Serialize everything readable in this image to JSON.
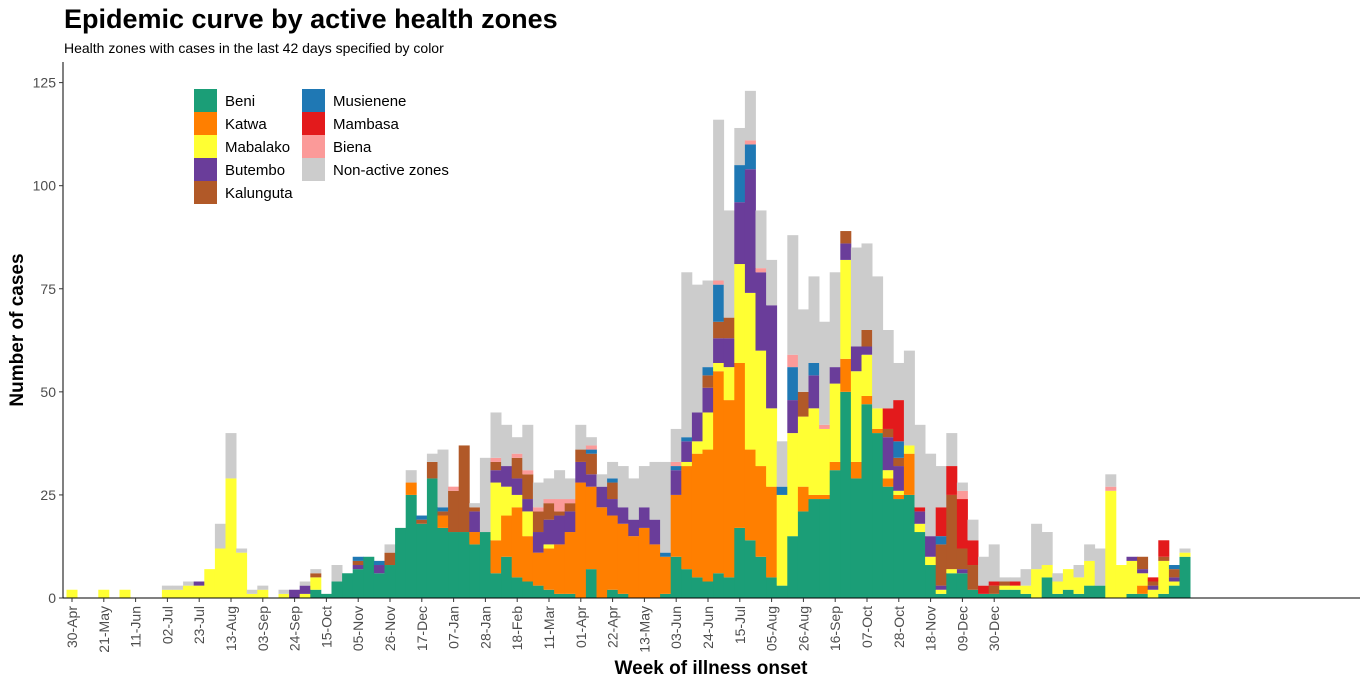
{
  "chart_data": {
    "type": "bar",
    "stacked": true,
    "title": "Epidemic curve by active health zones",
    "subtitle": "Health zones with cases in the last 42 days specified by color",
    "xlabel": "Week of illness onset",
    "ylabel": "Number of cases",
    "ylim": [
      0,
      130
    ],
    "yticks": [
      0,
      25,
      50,
      75,
      100,
      125
    ],
    "x_tick_labels": [
      "30-Apr",
      "21-May",
      "11-Jun",
      "02-Jul",
      "23-Jul",
      "13-Aug",
      "03-Sep",
      "24-Sep",
      "15-Oct",
      "05-Nov",
      "26-Nov",
      "17-Dec",
      "07-Jan",
      "28-Jan",
      "18-Feb",
      "11-Mar",
      "01-Apr",
      "22-Apr",
      "13-May",
      "03-Jun",
      "24-Jun",
      "15-Jul",
      "05-Aug",
      "26-Aug",
      "16-Sep",
      "07-Oct",
      "28-Oct",
      "18-Nov",
      "09-Dec",
      "30-Dec"
    ],
    "legend_position": "top-left",
    "grid": false,
    "series": [
      {
        "name": "Beni",
        "color": "#1b9e77",
        "values": [
          0,
          0,
          0,
          0,
          0,
          0,
          0,
          0,
          0,
          0,
          0,
          0,
          0,
          0,
          0,
          0,
          0,
          0,
          0,
          0,
          0,
          0,
          0,
          2,
          1,
          4,
          6,
          7,
          10,
          6,
          8,
          17,
          25,
          18,
          29,
          17,
          16,
          16,
          13,
          16,
          6,
          10,
          5,
          4,
          3,
          2,
          1,
          1,
          0,
          7,
          0,
          2,
          1,
          0,
          0,
          0,
          1,
          10,
          7,
          5,
          4,
          6,
          5,
          17,
          14,
          10,
          5,
          3,
          15,
          21,
          24,
          24,
          31,
          50,
          29,
          47,
          40,
          27,
          24,
          25,
          16,
          8,
          1,
          6,
          6,
          2,
          1,
          1,
          2,
          2,
          1,
          0,
          5,
          1,
          2,
          1,
          3,
          3,
          0,
          0,
          1,
          1,
          0,
          1,
          3,
          10
        ]
      },
      {
        "name": "Katwa",
        "color": "#ff7f00",
        "values": [
          0,
          0,
          0,
          0,
          0,
          0,
          0,
          0,
          0,
          0,
          0,
          0,
          0,
          0,
          0,
          0,
          0,
          0,
          0,
          0,
          0,
          0,
          0,
          0,
          0,
          0,
          0,
          0,
          0,
          0,
          0,
          0,
          3,
          0,
          0,
          3,
          0,
          0,
          3,
          0,
          8,
          10,
          17,
          11,
          8,
          10,
          12,
          15,
          28,
          20,
          22,
          18,
          17,
          15,
          17,
          13,
          9,
          15,
          25,
          30,
          32,
          49,
          43,
          40,
          22,
          22,
          22,
          0,
          0,
          6,
          1,
          1,
          2,
          8,
          4,
          2,
          1,
          2,
          1,
          10,
          0,
          0,
          0,
          0,
          0,
          0,
          0,
          0,
          0,
          0,
          0,
          0,
          0,
          0,
          0,
          0,
          0,
          0,
          0,
          0,
          0,
          2,
          0,
          0,
          0,
          0
        ]
      },
      {
        "name": "Mabalako",
        "color": "#ffff33",
        "values": [
          2,
          0,
          0,
          2,
          0,
          2,
          0,
          0,
          0,
          2,
          2,
          3,
          3,
          7,
          12,
          29,
          11,
          1,
          2,
          0,
          1,
          0,
          1,
          3,
          0,
          0,
          0,
          0,
          0,
          0,
          0,
          0,
          0,
          0,
          0,
          0,
          0,
          0,
          0,
          0,
          14,
          7,
          3,
          6,
          0,
          1,
          0,
          0,
          0,
          0,
          0,
          0,
          0,
          0,
          0,
          0,
          0,
          0,
          1,
          3,
          9,
          2,
          8,
          24,
          38,
          28,
          19,
          22,
          25,
          17,
          21,
          16,
          19,
          24,
          22,
          10,
          5,
          2,
          1,
          2,
          2,
          2,
          1,
          1,
          0,
          0,
          0,
          0,
          1,
          1,
          2,
          7,
          3,
          3,
          5,
          4,
          6,
          0,
          26,
          8,
          8,
          3,
          2,
          8,
          1,
          1
        ]
      },
      {
        "name": "Butembo",
        "color": "#6a3d9a",
        "values": [
          0,
          0,
          0,
          0,
          0,
          0,
          0,
          0,
          0,
          0,
          0,
          0,
          1,
          0,
          0,
          0,
          0,
          0,
          0,
          0,
          0,
          2,
          2,
          0,
          0,
          0,
          0,
          1,
          0,
          2,
          0,
          0,
          0,
          0,
          0,
          0,
          0,
          0,
          5,
          0,
          3,
          5,
          4,
          3,
          5,
          6,
          7,
          5,
          5,
          3,
          5,
          4,
          4,
          4,
          5,
          6,
          0,
          6,
          5,
          7,
          6,
          6,
          7,
          15,
          30,
          19,
          25,
          0,
          8,
          0,
          8,
          0,
          4,
          4,
          6,
          2,
          0,
          8,
          6,
          0,
          3,
          5,
          1,
          0,
          1,
          0,
          0,
          0,
          0,
          0,
          0,
          0,
          0,
          0,
          0,
          0,
          0,
          0,
          0,
          0,
          1,
          1,
          1,
          0,
          1,
          0
        ]
      },
      {
        "name": "Kalunguta",
        "color": "#b15928",
        "values": [
          0,
          0,
          0,
          0,
          0,
          0,
          0,
          0,
          0,
          0,
          0,
          0,
          0,
          0,
          0,
          0,
          0,
          0,
          0,
          0,
          0,
          0,
          0,
          1,
          0,
          0,
          0,
          1,
          0,
          0,
          3,
          0,
          0,
          1,
          4,
          1,
          10,
          21,
          1,
          0,
          2,
          0,
          5,
          6,
          5,
          4,
          1,
          2,
          3,
          5,
          0,
          4,
          0,
          0,
          0,
          0,
          0,
          0,
          0,
          0,
          3,
          4,
          5,
          0,
          0,
          0,
          0,
          0,
          0,
          6,
          0,
          0,
          0,
          3,
          0,
          4,
          0,
          2,
          2,
          0,
          0,
          0,
          10,
          18,
          5,
          6,
          0,
          2,
          1,
          0,
          0,
          0,
          0,
          0,
          0,
          0,
          0,
          0,
          0,
          0,
          0,
          3,
          1,
          1,
          2,
          0
        ]
      },
      {
        "name": "Musienene",
        "color": "#1f78b4",
        "values": [
          0,
          0,
          0,
          0,
          0,
          0,
          0,
          0,
          0,
          0,
          0,
          0,
          0,
          0,
          0,
          0,
          0,
          0,
          0,
          0,
          0,
          0,
          0,
          0,
          0,
          0,
          0,
          1,
          0,
          1,
          0,
          0,
          0,
          1,
          0,
          1,
          0,
          0,
          0,
          0,
          0,
          0,
          0,
          0,
          0,
          0,
          0,
          0,
          0,
          1,
          0,
          1,
          0,
          0,
          0,
          0,
          1,
          1,
          1,
          0,
          2,
          9,
          0,
          9,
          6,
          0,
          0,
          2,
          8,
          0,
          3,
          0,
          0,
          0,
          0,
          0,
          0,
          0,
          4,
          0,
          0,
          0,
          2,
          0,
          0,
          0,
          0,
          0,
          0,
          0,
          0,
          0,
          0,
          0,
          0,
          0,
          0,
          0,
          0,
          0,
          0,
          0,
          0,
          0,
          1,
          0
        ]
      },
      {
        "name": "Mambasa",
        "color": "#e31a1c",
        "values": [
          0,
          0,
          0,
          0,
          0,
          0,
          0,
          0,
          0,
          0,
          0,
          0,
          0,
          0,
          0,
          0,
          0,
          0,
          0,
          0,
          0,
          0,
          0,
          0,
          0,
          0,
          0,
          0,
          0,
          0,
          0,
          0,
          0,
          0,
          0,
          0,
          0,
          0,
          0,
          0,
          0,
          0,
          0,
          0,
          0,
          0,
          0,
          0,
          0,
          0,
          0,
          0,
          0,
          0,
          0,
          0,
          0,
          0,
          0,
          0,
          0,
          0,
          0,
          0,
          0,
          0,
          0,
          0,
          0,
          0,
          0,
          0,
          0,
          0,
          0,
          0,
          0,
          5,
          10,
          0,
          1,
          0,
          7,
          7,
          12,
          6,
          2,
          1,
          0,
          1,
          0,
          0,
          0,
          0,
          0,
          0,
          0,
          0,
          0,
          0,
          0,
          0,
          1,
          4,
          0,
          0
        ]
      },
      {
        "name": "Biena",
        "color": "#fb9a99",
        "values": [
          0,
          0,
          0,
          0,
          0,
          0,
          0,
          0,
          0,
          0,
          0,
          0,
          0,
          0,
          0,
          0,
          0,
          0,
          0,
          0,
          0,
          0,
          0,
          0,
          0,
          0,
          0,
          0,
          0,
          0,
          0,
          0,
          0,
          0,
          0,
          0,
          1,
          0,
          0,
          0,
          1,
          0,
          1,
          1,
          1,
          1,
          3,
          1,
          0,
          1,
          0,
          0,
          0,
          0,
          0,
          0,
          0,
          1,
          0,
          0,
          0,
          1,
          0,
          0,
          1,
          1,
          0,
          0,
          3,
          0,
          0,
          1,
          0,
          0,
          0,
          0,
          0,
          0,
          0,
          0,
          0,
          0,
          0,
          0,
          2,
          0,
          0,
          0,
          0,
          0,
          0,
          0,
          0,
          0,
          0,
          0,
          0,
          0,
          1,
          0,
          0,
          0,
          0,
          0,
          0,
          0
        ]
      },
      {
        "name": "Non-active zones",
        "color": "#cccccc",
        "values": [
          0,
          0,
          0,
          0,
          0,
          0,
          0,
          0,
          0,
          1,
          1,
          1,
          0,
          0,
          6,
          11,
          1,
          1,
          1,
          0,
          1,
          0,
          1,
          1,
          0,
          4,
          0,
          0,
          0,
          0,
          2,
          0,
          3,
          0,
          2,
          14,
          0,
          0,
          1,
          18,
          11,
          10,
          4,
          11,
          6,
          5,
          7,
          5,
          6,
          2,
          3,
          4,
          10,
          10,
          10,
          14,
          22,
          8,
          40,
          31,
          21,
          39,
          26,
          9,
          12,
          14,
          11,
          11,
          29,
          20,
          21,
          25,
          23,
          0,
          24,
          21,
          32,
          19,
          9,
          23,
          20,
          20,
          10,
          8,
          2,
          5,
          7,
          9,
          1,
          1,
          4,
          11,
          8,
          2,
          0,
          3,
          4,
          9,
          3,
          0,
          0,
          0,
          0,
          0,
          0,
          1
        ]
      }
    ]
  }
}
